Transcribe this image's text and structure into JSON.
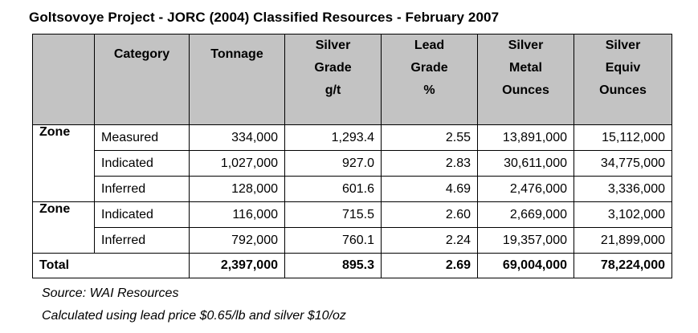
{
  "title": "Goltsovoye Project - JORC (2004) Classified Resources - February 2007",
  "header": {
    "category": "Category",
    "tonnage": "Tonnage",
    "silver_grade": [
      "Silver",
      "Grade",
      "g/t"
    ],
    "lead_grade": [
      "Lead",
      "Grade",
      "%"
    ],
    "silver_metal": [
      "Silver",
      "Metal",
      "Ounces"
    ],
    "silver_equiv": [
      "Silver",
      "Equiv",
      "Ounces"
    ]
  },
  "zones": [
    {
      "label": "Zone",
      "rows": [
        {
          "category": "Measured",
          "tonnage": "334,000",
          "silver_grade": "1,293.4",
          "lead_grade": "2.55",
          "silver_metal": "13,891,000",
          "silver_equiv": "15,112,000"
        },
        {
          "category": "Indicated",
          "tonnage": "1,027,000",
          "silver_grade": "927.0",
          "lead_grade": "2.83",
          "silver_metal": "30,611,000",
          "silver_equiv": "34,775,000"
        },
        {
          "category": "Inferred",
          "tonnage": "128,000",
          "silver_grade": "601.6",
          "lead_grade": "4.69",
          "silver_metal": "2,476,000",
          "silver_equiv": "3,336,000"
        }
      ]
    },
    {
      "label": "Zone",
      "rows": [
        {
          "category": "Indicated",
          "tonnage": "116,000",
          "silver_grade": "715.5",
          "lead_grade": "2.60",
          "silver_metal": "2,669,000",
          "silver_equiv": "3,102,000"
        },
        {
          "category": "Inferred",
          "tonnage": "792,000",
          "silver_grade": "760.1",
          "lead_grade": "2.24",
          "silver_metal": "19,357,000",
          "silver_equiv": "21,899,000"
        }
      ]
    }
  ],
  "total": {
    "label": "Total",
    "tonnage": "2,397,000",
    "silver_grade": "895.3",
    "lead_grade": "2.69",
    "silver_metal": "69,004,000",
    "silver_equiv": "78,224,000"
  },
  "notes": [
    "Source: WAI Resources",
    "Calculated using lead price $0.65/lb and silver $10/oz"
  ]
}
